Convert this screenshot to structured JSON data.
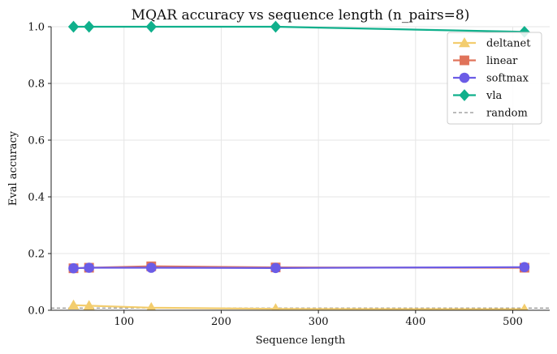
{
  "chart_data": {
    "type": "line",
    "title": "MQAR accuracy vs sequence length  (n_pairs=8)",
    "xlabel": "Sequence length",
    "ylabel": "Eval accuracy",
    "xlim": [
      25,
      538
    ],
    "ylim": [
      0,
      1
    ],
    "xticks": [
      100,
      200,
      300,
      400,
      500
    ],
    "yticks": [
      0.0,
      0.2,
      0.4,
      0.6,
      0.8,
      1.0
    ],
    "grid": true,
    "legend_position": "top-right",
    "x": [
      48,
      64,
      128,
      256,
      512
    ],
    "series": [
      {
        "name": "deltanet",
        "values": [
          0.018,
          0.016,
          0.009,
          0.005,
          0.004
        ],
        "color": "#f3cd6e",
        "marker": "triangle"
      },
      {
        "name": "linear",
        "values": [
          0.148,
          0.15,
          0.155,
          0.151,
          0.15
        ],
        "color": "#e0735a",
        "marker": "square"
      },
      {
        "name": "softmax",
        "values": [
          0.148,
          0.15,
          0.15,
          0.149,
          0.152
        ],
        "color": "#6b5ce6",
        "marker": "circle"
      },
      {
        "name": "vla",
        "values": [
          1.0,
          1.0,
          1.0,
          1.0,
          0.982
        ],
        "color": "#10b08c",
        "marker": "diamond"
      }
    ],
    "reference_line": {
      "name": "random",
      "value": 0.0078,
      "color": "#777777",
      "style": "dashed"
    }
  }
}
